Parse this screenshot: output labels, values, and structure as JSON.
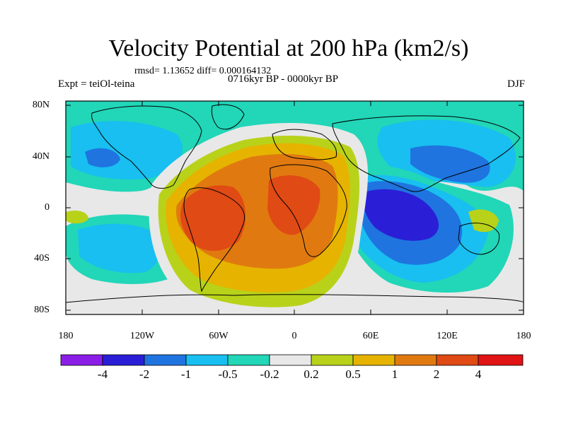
{
  "title": "Velocity Potential at 200 hPa (km2/s)",
  "stats": "rmsd= 1.13652 diff= 0.000164132",
  "experiment": "Expt = teiOl-teina",
  "period": "0716kyr BP - 0000kyr BP",
  "season": "DJF",
  "map": {
    "lat_ticks": [
      "80N",
      "40N",
      "0",
      "40S",
      "80S"
    ],
    "lon_ticks": [
      "180",
      "120W",
      "60W",
      "0",
      "60E",
      "120E",
      "180"
    ]
  },
  "colorbar": {
    "labels": [
      "-4",
      "-2",
      "-1",
      "-0.5",
      "-0.2",
      "0.2",
      "0.5",
      "1",
      "2",
      "4"
    ],
    "colors": [
      "#8a1ee6",
      "#2a1fd6",
      "#1f74e0",
      "#18bff0",
      "#22d6b8",
      "#e8e8e8",
      "#b8d21a",
      "#e6b400",
      "#e07a10",
      "#e04a14",
      "#e01414"
    ]
  }
}
